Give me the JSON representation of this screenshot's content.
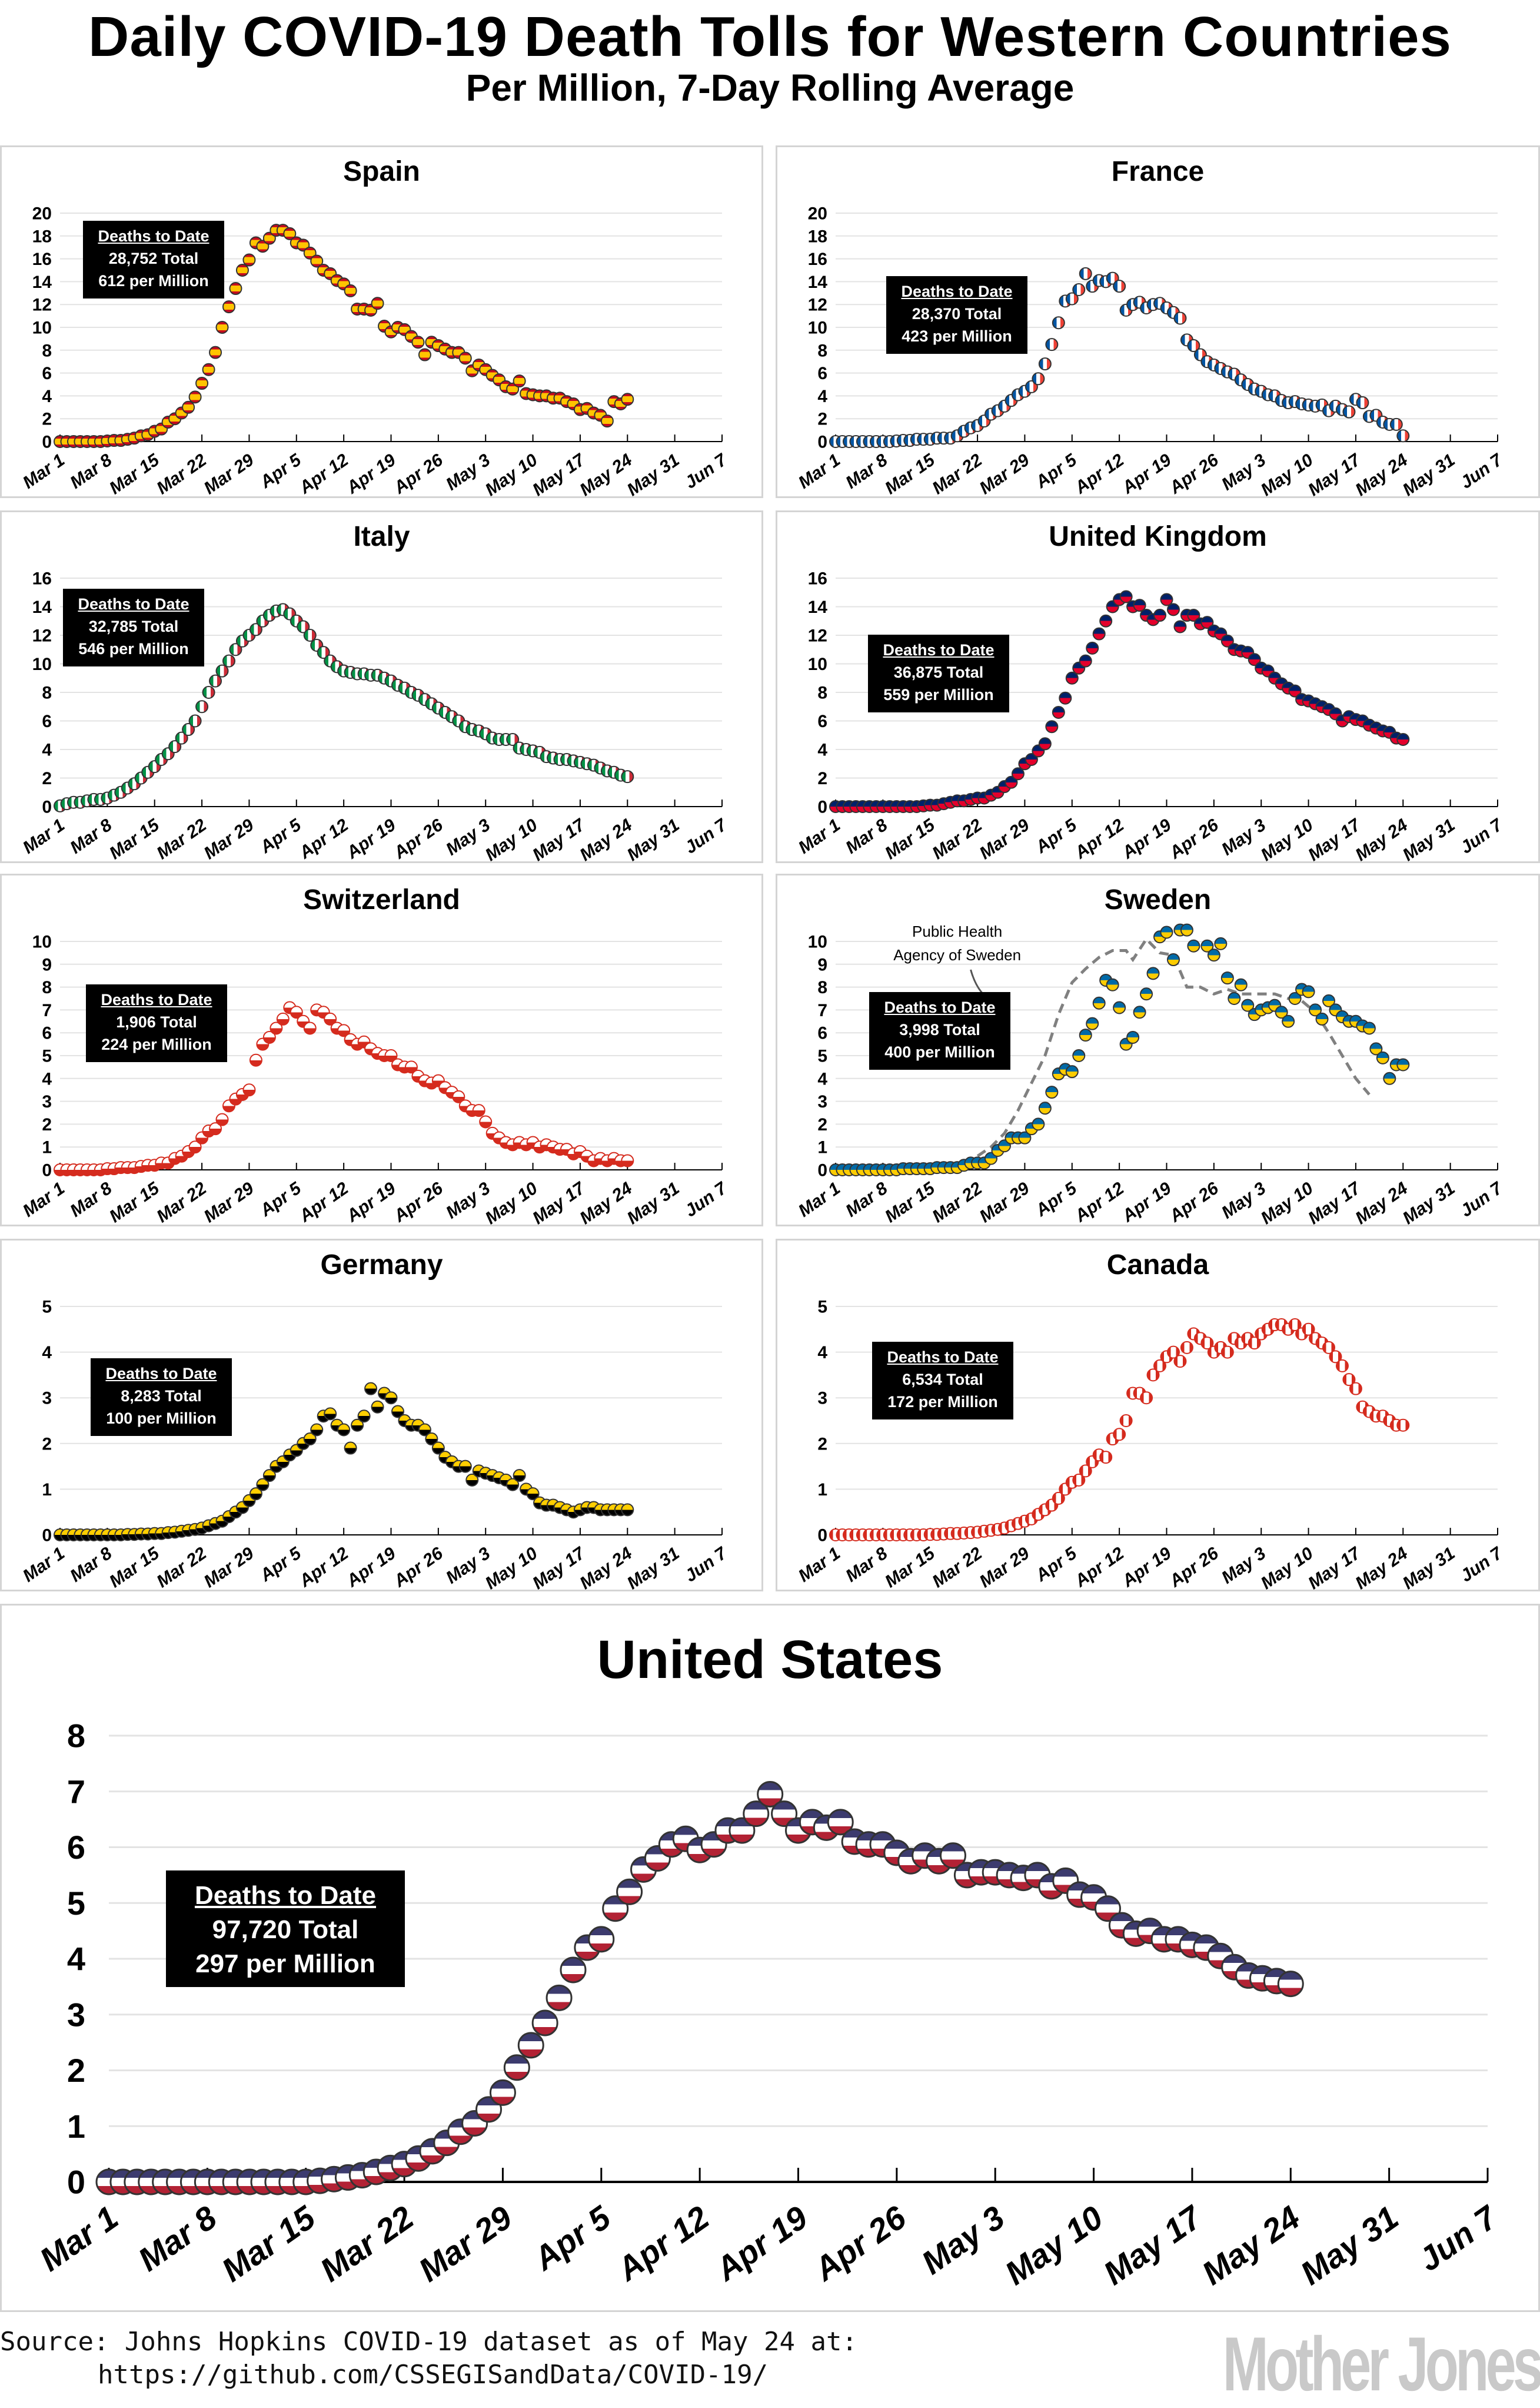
{
  "header": {
    "title": "Daily COVID-19 Death Tolls for Western Countries",
    "subtitle": "Per Million, 7-Day Rolling Average"
  },
  "x_axis": {
    "start_date": "Mar 1",
    "tick_labels": [
      "Mar 1",
      "Mar 8",
      "Mar 15",
      "Mar 22",
      "Mar 29",
      "Apr 5",
      "Apr 12",
      "Apr 19",
      "Apr 26",
      "May 3",
      "May 10",
      "May 17",
      "May 24",
      "May 31",
      "Jun 7"
    ],
    "tick_step_days": 7,
    "range_days": [
      0,
      98
    ]
  },
  "chart_data": [
    {
      "id": "spain",
      "type": "scatter",
      "title": "Spain",
      "box": {
        "heading": "Deaths to Date",
        "total": "28,752 Total",
        "per_million": "612 per Million"
      },
      "ylim": [
        0,
        20
      ],
      "yticks": [
        0,
        2,
        4,
        6,
        8,
        10,
        12,
        14,
        16,
        18,
        20
      ],
      "marker_colors": [
        "#c60b1e",
        "#ffc400"
      ],
      "values": [
        0,
        0,
        0,
        0,
        0,
        0,
        0,
        0.05,
        0.1,
        0.1,
        0.2,
        0.3,
        0.5,
        0.6,
        0.9,
        1.1,
        1.7,
        2.0,
        2.5,
        3.0,
        3.9,
        5.1,
        6.3,
        7.8,
        10.0,
        11.8,
        13.4,
        15.0,
        15.9,
        17.4,
        17.1,
        17.8,
        18.5,
        18.5,
        18.2,
        17.4,
        17.2,
        16.5,
        15.8,
        15.0,
        14.7,
        14.1,
        13.8,
        13.2,
        11.6,
        11.6,
        11.5,
        12.1,
        10.1,
        9.6,
        10.0,
        9.8,
        9.2,
        8.7,
        7.6,
        8.7,
        8.4,
        8.1,
        7.8,
        7.8,
        7.3,
        6.2,
        6.7,
        6.3,
        5.8,
        5.4,
        4.8,
        4.6,
        5.3,
        4.2,
        4.1,
        4.0,
        4.0,
        3.8,
        3.8,
        3.5,
        3.3,
        2.8,
        2.9,
        2.5,
        2.3,
        1.8,
        3.5,
        3.3,
        3.7
      ]
    },
    {
      "id": "france",
      "type": "scatter",
      "title": "France",
      "box": {
        "heading": "Deaths to Date",
        "total": "28,370 Total",
        "per_million": "423 per Million"
      },
      "ylim": [
        0,
        20
      ],
      "yticks": [
        0,
        2,
        4,
        6,
        8,
        10,
        12,
        14,
        16,
        18,
        20
      ],
      "marker_colors": [
        "#0055a4",
        "#ffffff",
        "#ef4135"
      ],
      "values": [
        0,
        0,
        0,
        0,
        0,
        0,
        0,
        0,
        0,
        0.05,
        0.1,
        0.1,
        0.2,
        0.2,
        0.2,
        0.3,
        0.3,
        0.3,
        0.5,
        0.9,
        1.2,
        1.4,
        1.8,
        2.4,
        2.7,
        3.1,
        3.6,
        4.1,
        4.4,
        4.8,
        5.5,
        6.8,
        8.5,
        10.4,
        12.3,
        12.5,
        13.3,
        14.7,
        13.6,
        14.1,
        14.0,
        14.3,
        13.6,
        11.5,
        12.0,
        12.2,
        11.7,
        12.0,
        12.1,
        11.7,
        11.3,
        10.8,
        8.9,
        8.4,
        7.6,
        7.0,
        6.7,
        6.4,
        6.1,
        5.9,
        5.4,
        5.0,
        4.6,
        4.4,
        4.1,
        4.0,
        3.6,
        3.4,
        3.5,
        3.3,
        3.2,
        3.1,
        3.2,
        2.7,
        3.1,
        2.8,
        2.6,
        3.7,
        3.4,
        2.2,
        2.3,
        1.7,
        1.5,
        1.5,
        0.5
      ]
    },
    {
      "id": "italy",
      "type": "scatter",
      "title": "Italy",
      "box": {
        "heading": "Deaths to Date",
        "total": "32,785 Total",
        "per_million": "546 per Million"
      },
      "ylim": [
        0,
        16
      ],
      "yticks": [
        0,
        2,
        4,
        6,
        8,
        10,
        12,
        14,
        16
      ],
      "marker_colors": [
        "#009246",
        "#ce2b37"
      ],
      "values": [
        0.05,
        0.2,
        0.3,
        0.3,
        0.4,
        0.5,
        0.5,
        0.6,
        0.8,
        1.0,
        1.3,
        1.6,
        2.0,
        2.4,
        2.8,
        3.3,
        3.7,
        4.2,
        4.8,
        5.4,
        6.0,
        7.0,
        8.0,
        8.8,
        9.5,
        10.2,
        11.0,
        11.6,
        12.0,
        12.4,
        13.0,
        13.4,
        13.7,
        13.8,
        13.5,
        13.0,
        12.6,
        12.0,
        11.3,
        10.8,
        10.2,
        9.8,
        9.5,
        9.4,
        9.3,
        9.3,
        9.2,
        9.2,
        9.0,
        8.8,
        8.5,
        8.3,
        8.0,
        7.8,
        7.5,
        7.2,
        6.9,
        6.6,
        6.3,
        6.0,
        5.6,
        5.4,
        5.3,
        5.1,
        4.8,
        4.7,
        4.7,
        4.7,
        4.1,
        4.0,
        3.9,
        3.8,
        3.5,
        3.4,
        3.3,
        3.3,
        3.2,
        3.1,
        3.0,
        2.9,
        2.7,
        2.5,
        2.4,
        2.2,
        2.1
      ]
    },
    {
      "id": "uk",
      "type": "scatter",
      "title": "United Kingdom",
      "box": {
        "heading": "Deaths to Date",
        "total": "36,875 Total",
        "per_million": "559 per Million"
      },
      "ylim": [
        0,
        16
      ],
      "yticks": [
        0,
        2,
        4,
        6,
        8,
        10,
        12,
        14,
        16
      ],
      "marker_colors": [
        "#012169",
        "#e4002b"
      ],
      "values": [
        0,
        0,
        0,
        0,
        0,
        0,
        0,
        0,
        0,
        0,
        0,
        0,
        0,
        0.05,
        0.1,
        0.1,
        0.2,
        0.3,
        0.4,
        0.4,
        0.5,
        0.6,
        0.6,
        0.8,
        1.0,
        1.4,
        1.7,
        2.3,
        3.0,
        3.3,
        3.9,
        4.4,
        5.6,
        6.6,
        7.6,
        9.0,
        9.7,
        10.2,
        11.1,
        12.1,
        13.0,
        14.0,
        14.5,
        14.7,
        14.0,
        14.1,
        13.4,
        13.1,
        13.4,
        14.5,
        13.8,
        12.6,
        13.4,
        13.4,
        12.8,
        12.9,
        12.3,
        12.1,
        11.6,
        11.0,
        10.9,
        10.8,
        10.3,
        9.7,
        9.5,
        9.0,
        8.6,
        8.3,
        8.1,
        7.5,
        7.4,
        7.2,
        7.0,
        6.8,
        6.5,
        6.0,
        6.3,
        6.1,
        6.0,
        5.7,
        5.5,
        5.3,
        5.2,
        4.8,
        4.7
      ]
    },
    {
      "id": "switzerland",
      "type": "scatter",
      "title": "Switzerland",
      "box": {
        "heading": "Deaths to Date",
        "total": "1,906 Total",
        "per_million": "224 per Million"
      },
      "ylim": [
        0,
        10
      ],
      "yticks": [
        0,
        1,
        2,
        3,
        4,
        5,
        6,
        7,
        8,
        9,
        10
      ],
      "marker_colors": [
        "#ffffff",
        "#d52b1e"
      ],
      "values": [
        0,
        0,
        0,
        0,
        0,
        0,
        0,
        0.05,
        0.05,
        0.1,
        0.1,
        0.1,
        0.15,
        0.2,
        0.2,
        0.3,
        0.3,
        0.5,
        0.6,
        0.8,
        1.0,
        1.4,
        1.7,
        1.8,
        2.2,
        2.8,
        3.1,
        3.3,
        3.5,
        4.8,
        5.5,
        5.8,
        6.2,
        6.6,
        7.1,
        6.9,
        6.5,
        6.2,
        7.0,
        6.9,
        6.6,
        6.2,
        6.1,
        5.7,
        5.5,
        5.6,
        5.3,
        5.1,
        5.0,
        5.0,
        4.6,
        4.5,
        4.5,
        4.1,
        3.9,
        3.8,
        3.9,
        3.6,
        3.4,
        3.2,
        2.8,
        2.6,
        2.6,
        2.1,
        1.6,
        1.4,
        1.2,
        1.1,
        1.2,
        1.1,
        1.2,
        1.0,
        1.1,
        1.0,
        0.9,
        0.9,
        0.7,
        0.8,
        0.6,
        0.4,
        0.5,
        0.4,
        0.5,
        0.4,
        0.4
      ]
    },
    {
      "id": "sweden",
      "type": "scatter",
      "title": "Sweden",
      "box": {
        "heading": "Deaths to Date",
        "total": "3,998 Total",
        "per_million": "400 per Million"
      },
      "ylim": [
        0,
        10
      ],
      "yticks": [
        0,
        1,
        2,
        3,
        4,
        5,
        6,
        7,
        8,
        9,
        10
      ],
      "marker_colors": [
        "#006aa7",
        "#fecc00"
      ],
      "values": [
        0,
        0,
        0,
        0,
        0,
        0,
        0,
        0,
        0,
        0,
        0.05,
        0.05,
        0.05,
        0.05,
        0.05,
        0.1,
        0.1,
        0.1,
        0.1,
        0.2,
        0.3,
        0.3,
        0.3,
        0.5,
        0.85,
        1.05,
        1.4,
        1.4,
        1.4,
        1.8,
        2.0,
        2.7,
        3.4,
        4.2,
        4.4,
        4.3,
        5.0,
        5.9,
        6.4,
        7.3,
        8.3,
        8.1,
        7.1,
        5.5,
        5.8,
        6.9,
        7.7,
        8.6,
        10.2,
        10.4,
        9.2,
        10.5,
        10.5,
        9.8,
        null,
        9.8,
        9.4,
        9.9,
        8.4,
        7.5,
        8.1,
        7.2,
        6.8,
        7.0,
        7.1,
        7.2,
        6.9,
        6.5,
        7.5,
        7.9,
        7.8,
        7.0,
        6.6,
        7.4,
        7.0,
        6.7,
        6.5,
        6.5,
        6.3,
        6.2,
        5.3,
        4.9,
        4.0,
        4.6,
        4.6
      ],
      "reference_series": {
        "label_line1": "Public Health",
        "label_line2": "Agency of Sweden",
        "style": "dashed",
        "color": "#808080",
        "points": [
          [
            19,
            0.3
          ],
          [
            21,
            0.6
          ],
          [
            23,
            1.0
          ],
          [
            25,
            1.6
          ],
          [
            27,
            2.6
          ],
          [
            29,
            3.8
          ],
          [
            31,
            5.0
          ],
          [
            33,
            6.8
          ],
          [
            35,
            8.2
          ],
          [
            37,
            8.8
          ],
          [
            39,
            9.3
          ],
          [
            41,
            9.6
          ],
          [
            43,
            9.6
          ],
          [
            44,
            9.2
          ],
          [
            46,
            10.1
          ],
          [
            48,
            9.5
          ],
          [
            50,
            9.4
          ],
          [
            52,
            8.0
          ],
          [
            54,
            8.0
          ],
          [
            56,
            7.7
          ],
          [
            58,
            7.9
          ],
          [
            60,
            7.7
          ],
          [
            63,
            7.7
          ],
          [
            65,
            7.7
          ],
          [
            67,
            7.5
          ],
          [
            69,
            7.4
          ],
          [
            71,
            6.9
          ],
          [
            73,
            6.0
          ],
          [
            75,
            5.0
          ],
          [
            77,
            4.0
          ],
          [
            79,
            3.3
          ]
        ]
      }
    },
    {
      "id": "germany",
      "type": "scatter",
      "title": "Germany",
      "box": {
        "heading": "Deaths to Date",
        "total": "8,283 Total",
        "per_million": "100 per Million"
      },
      "ylim": [
        0,
        5
      ],
      "yticks": [
        0,
        1,
        2,
        3,
        4,
        5
      ],
      "marker_colors": [
        "#ffce00",
        "#000000"
      ],
      "values": [
        0,
        0,
        0,
        0,
        0,
        0,
        0,
        0,
        0,
        0,
        0.01,
        0.01,
        0.02,
        0.02,
        0.03,
        0.03,
        0.05,
        0.06,
        0.08,
        0.1,
        0.12,
        0.15,
        0.2,
        0.25,
        0.3,
        0.4,
        0.5,
        0.6,
        0.75,
        0.9,
        1.1,
        1.3,
        1.5,
        1.6,
        1.75,
        1.85,
        2.0,
        2.1,
        2.3,
        2.6,
        2.65,
        2.4,
        2.3,
        1.9,
        2.4,
        2.6,
        3.2,
        2.8,
        3.1,
        3.0,
        2.7,
        2.5,
        2.4,
        2.4,
        2.3,
        2.1,
        1.9,
        1.7,
        1.6,
        1.5,
        1.5,
        1.2,
        1.4,
        1.35,
        1.3,
        1.25,
        1.2,
        1.1,
        1.3,
        1.0,
        0.9,
        0.7,
        0.65,
        0.65,
        0.6,
        0.55,
        0.5,
        0.55,
        0.6,
        0.6,
        0.55,
        0.55,
        0.55,
        0.55,
        0.55
      ]
    },
    {
      "id": "canada",
      "type": "scatter",
      "title": "Canada",
      "box": {
        "heading": "Deaths to Date",
        "total": "6,534 Total",
        "per_million": "172 per Million"
      },
      "ylim": [
        0,
        5
      ],
      "yticks": [
        0,
        1,
        2,
        3,
        4,
        5
      ],
      "marker_colors": [
        "#ffffff",
        "#d52b1e"
      ],
      "values": [
        0,
        0,
        0,
        0,
        0,
        0,
        0,
        0,
        0,
        0,
        0,
        0,
        0,
        0,
        0.01,
        0.01,
        0.02,
        0.03,
        0.03,
        0.04,
        0.05,
        0.06,
        0.08,
        0.1,
        0.12,
        0.15,
        0.2,
        0.25,
        0.3,
        0.35,
        0.45,
        0.55,
        0.65,
        0.8,
        1.0,
        1.15,
        1.2,
        1.4,
        1.6,
        1.75,
        1.7,
        2.1,
        2.2,
        2.5,
        3.1,
        3.1,
        3.0,
        3.5,
        3.7,
        3.9,
        4.0,
        3.8,
        4.1,
        4.4,
        4.3,
        4.2,
        4.0,
        4.1,
        4.0,
        4.3,
        4.2,
        4.3,
        4.2,
        4.4,
        4.5,
        4.6,
        4.6,
        4.5,
        4.6,
        4.4,
        4.5,
        4.3,
        4.2,
        4.1,
        3.9,
        3.7,
        3.4,
        3.2,
        2.8,
        2.7,
        2.6,
        2.6,
        2.5,
        2.4,
        2.4
      ]
    },
    {
      "id": "us",
      "type": "scatter",
      "title": "United States",
      "box": {
        "heading": "Deaths to Date",
        "total": "97,720 Total",
        "per_million": "297 per Million"
      },
      "ylim": [
        0,
        8
      ],
      "yticks": [
        0,
        1,
        2,
        3,
        4,
        5,
        6,
        7,
        8
      ],
      "marker_colors": [
        "#3c3b6e",
        "#ffffff",
        "#b22234"
      ],
      "values": [
        0,
        0,
        0,
        0,
        0,
        0,
        0,
        0,
        0,
        0,
        0,
        0,
        0,
        0,
        0,
        0.02,
        0.05,
        0.08,
        0.12,
        0.18,
        0.25,
        0.32,
        0.42,
        0.55,
        0.7,
        0.9,
        1.05,
        1.3,
        1.6,
        2.05,
        2.45,
        2.85,
        3.3,
        3.8,
        4.2,
        4.35,
        4.9,
        5.2,
        5.6,
        5.8,
        6.05,
        6.15,
        5.95,
        6.05,
        6.3,
        6.3,
        6.6,
        6.95,
        6.6,
        6.3,
        6.45,
        6.35,
        6.45,
        6.1,
        6.05,
        6.05,
        5.9,
        5.75,
        5.85,
        5.75,
        5.85,
        5.5,
        5.55,
        5.55,
        5.5,
        5.45,
        5.5,
        5.3,
        5.4,
        5.15,
        5.1,
        4.9,
        4.6,
        4.45,
        4.5,
        4.35,
        4.35,
        4.25,
        4.2,
        4.05,
        3.85,
        3.7,
        3.65,
        3.6,
        3.55
      ]
    }
  ],
  "footer": {
    "source_line1": "Source: Johns Hopkins COVID-19 dataset as of May 24 at:",
    "source_line2": "https://github.com/CSSEGISandData/COVID-19/",
    "logo": "Mother Jones"
  }
}
